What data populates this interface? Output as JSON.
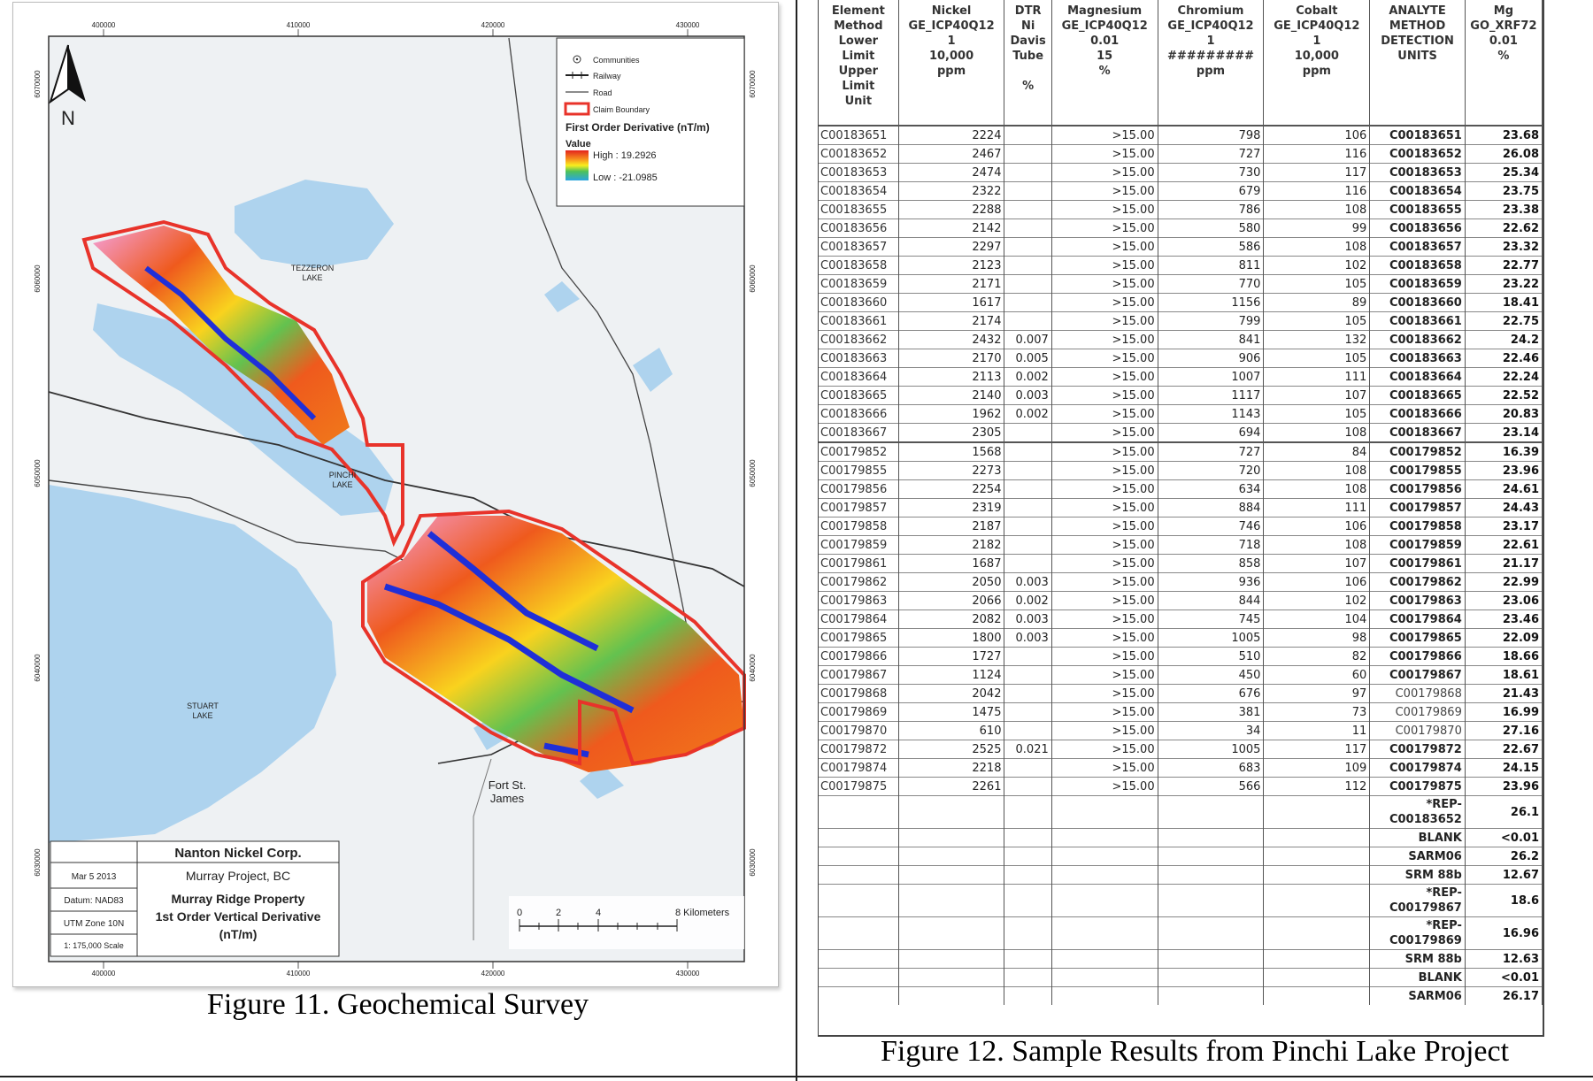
{
  "left": {
    "caption": "Figure 11. Geochemical Survey",
    "map": {
      "legend": {
        "communities": "Communities",
        "railway": "Railway",
        "road": "Road",
        "claim_boundary": "Claim Boundary",
        "title": "First Order Derivative (nT/m)",
        "value": "Value",
        "high": "High : 19.2926",
        "low": "Low : -21.0985"
      },
      "north": "N",
      "lakes": {
        "tezzeron_1": "TEZZERON",
        "tezzeron_2": "LAKE",
        "pinchi_1": "PINCHI",
        "pinchi_2": "LAKE",
        "stuart_1": "STUART",
        "stuart_2": "LAKE",
        "fort_1": "Fort St.",
        "fort_2": "James"
      },
      "grid_top": [
        "400000",
        "410000",
        "420000",
        "430000"
      ],
      "grid_bottom": [
        "400000",
        "410000",
        "420000",
        "430000"
      ],
      "grid_left": [
        "6070000",
        "6060000",
        "6050000",
        "6040000",
        "6030000"
      ],
      "grid_right": [
        "6070000",
        "6060000",
        "6050000",
        "6040000",
        "6030000"
      ],
      "scale_ticks": [
        "0",
        "2",
        "4",
        "8 Kilometers"
      ],
      "title_block": {
        "company": "Nanton Nickel Corp.",
        "project": "Murray Project, BC",
        "property": "Murray Ridge Property",
        "map_title_1": "1st Order Vertical Derivative",
        "map_title_2": "(nT/m)",
        "date": "Mar 5 2013",
        "datum": "Datum: NAD83",
        "zone": "UTM Zone 10N",
        "scale": "1: 175,000 Scale"
      },
      "colors": {
        "lake": "#aed3ee",
        "land": "#eef1f3",
        "claim": "#e8332a",
        "anomaly_red": "#f04a1c",
        "anomaly_blue": "#1f2fd8",
        "anomaly_pink": "#f2a6e0"
      }
    }
  },
  "right": {
    "caption": "Figure 12. Sample Results from Pinchi Lake Project",
    "headers": [
      "Element\nMethod\nLower\nLimit\nUpper\nLimit\nUnit",
      "Nickel\nGE_ICP40Q12\n1\n10,000\nppm",
      "DTR\nNi\nDavis\nTube\n\n%",
      "Magnesium\nGE_ICP40Q12\n0.01\n15\n%",
      "Chromium\nGE_ICP40Q12\n1\n#########\nppm",
      "Cobalt\nGE_ICP40Q12\n1\n10,000\nppm",
      "ANALYTE\nMETHOD\nDETECTION\nUNITS",
      "Mg\nGO_XRF72\n0.01\n%"
    ],
    "rows": [
      [
        "C00183651",
        "2224",
        "",
        ">15.00",
        "798",
        "106",
        "C00183651",
        "23.68"
      ],
      [
        "C00183652",
        "2467",
        "",
        ">15.00",
        "727",
        "116",
        "C00183652",
        "26.08"
      ],
      [
        "C00183653",
        "2474",
        "",
        ">15.00",
        "730",
        "117",
        "C00183653",
        "25.34"
      ],
      [
        "C00183654",
        "2322",
        "",
        ">15.00",
        "679",
        "116",
        "C00183654",
        "23.75"
      ],
      [
        "C00183655",
        "2288",
        "",
        ">15.00",
        "786",
        "108",
        "C00183655",
        "23.38"
      ],
      [
        "C00183656",
        "2142",
        "",
        ">15.00",
        "580",
        "99",
        "C00183656",
        "22.62"
      ],
      [
        "C00183657",
        "2297",
        "",
        ">15.00",
        "586",
        "108",
        "C00183657",
        "23.32"
      ],
      [
        "C00183658",
        "2123",
        "",
        ">15.00",
        "811",
        "102",
        "C00183658",
        "22.77"
      ],
      [
        "C00183659",
        "2171",
        "",
        ">15.00",
        "770",
        "105",
        "C00183659",
        "23.22"
      ],
      [
        "C00183660",
        "1617",
        "",
        ">15.00",
        "1156",
        "89",
        "C00183660",
        "18.41"
      ],
      [
        "C00183661",
        "2174",
        "",
        ">15.00",
        "799",
        "105",
        "C00183661",
        "22.75"
      ],
      [
        "C00183662",
        "2432",
        "0.007",
        ">15.00",
        "841",
        "132",
        "C00183662",
        "24.2"
      ],
      [
        "C00183663",
        "2170",
        "0.005",
        ">15.00",
        "906",
        "105",
        "C00183663",
        "22.46"
      ],
      [
        "C00183664",
        "2113",
        "0.002",
        ">15.00",
        "1007",
        "111",
        "C00183664",
        "22.24"
      ],
      [
        "C00183665",
        "2140",
        "0.003",
        ">15.00",
        "1117",
        "107",
        "C00183665",
        "22.52"
      ],
      [
        "C00183666",
        "1962",
        "0.002",
        ">15.00",
        "1143",
        "105",
        "C00183666",
        "20.83"
      ],
      [
        "C00183667",
        "2305",
        "",
        ">15.00",
        "694",
        "108",
        "C00183667",
        "23.14"
      ],
      [
        "C00179852",
        "1568",
        "",
        ">15.00",
        "727",
        "84",
        "C00179852",
        "16.39"
      ],
      [
        "C00179855",
        "2273",
        "",
        ">15.00",
        "720",
        "108",
        "C00179855",
        "23.96"
      ],
      [
        "C00179856",
        "2254",
        "",
        ">15.00",
        "634",
        "108",
        "C00179856",
        "24.61"
      ],
      [
        "C00179857",
        "2319",
        "",
        ">15.00",
        "884",
        "111",
        "C00179857",
        "24.43"
      ],
      [
        "C00179858",
        "2187",
        "",
        ">15.00",
        "746",
        "106",
        "C00179858",
        "23.17"
      ],
      [
        "C00179859",
        "2182",
        "",
        ">15.00",
        "718",
        "108",
        "C00179859",
        "22.61"
      ],
      [
        "C00179861",
        "1687",
        "",
        ">15.00",
        "858",
        "107",
        "C00179861",
        "21.17"
      ],
      [
        "C00179862",
        "2050",
        "0.003",
        ">15.00",
        "936",
        "106",
        "C00179862",
        "22.99"
      ],
      [
        "C00179863",
        "2066",
        "0.002",
        ">15.00",
        "844",
        "102",
        "C00179863",
        "23.06"
      ],
      [
        "C00179864",
        "2082",
        "0.003",
        ">15.00",
        "745",
        "104",
        "C00179864",
        "23.46"
      ],
      [
        "C00179865",
        "1800",
        "0.003",
        ">15.00",
        "1005",
        "98",
        "C00179865",
        "22.09"
      ],
      [
        "C00179866",
        "1727",
        "",
        ">15.00",
        "510",
        "82",
        "C00179866",
        "18.66"
      ],
      [
        "C00179867",
        "1124",
        "",
        ">15.00",
        "450",
        "60",
        "C00179867",
        "18.61"
      ],
      [
        "C00179868",
        "2042",
        "",
        ">15.00",
        "676",
        "97",
        "C00179868",
        "21.43"
      ],
      [
        "C00179869",
        "1475",
        "",
        ">15.00",
        "381",
        "73",
        "C00179869",
        "16.99"
      ],
      [
        "C00179870",
        "610",
        "",
        ">15.00",
        "34",
        "11",
        "C00179870",
        "27.16"
      ],
      [
        "C00179872",
        "2525",
        "0.021",
        ">15.00",
        "1005",
        "117",
        "C00179872",
        "22.67"
      ],
      [
        "C00179874",
        "2218",
        "",
        ">15.00",
        "683",
        "109",
        "C00179874",
        "24.15"
      ],
      [
        "C00179875",
        "2261",
        "",
        ">15.00",
        "566",
        "112",
        "C00179875",
        "23.96"
      ]
    ],
    "qc_rows": [
      [
        "*REP-\nC00183652",
        "26.1"
      ],
      [
        "BLANK",
        "<0.01"
      ],
      [
        "SARM06",
        "26.2"
      ],
      [
        "SRM 88b",
        "12.67"
      ],
      [
        "*REP-\nC00179867",
        "18.6"
      ],
      [
        "*REP-\nC00179869",
        "16.96"
      ],
      [
        "SRM 88b",
        "12.63"
      ],
      [
        "BLANK",
        "<0.01"
      ],
      [
        "SARM06",
        "26.17"
      ]
    ]
  }
}
